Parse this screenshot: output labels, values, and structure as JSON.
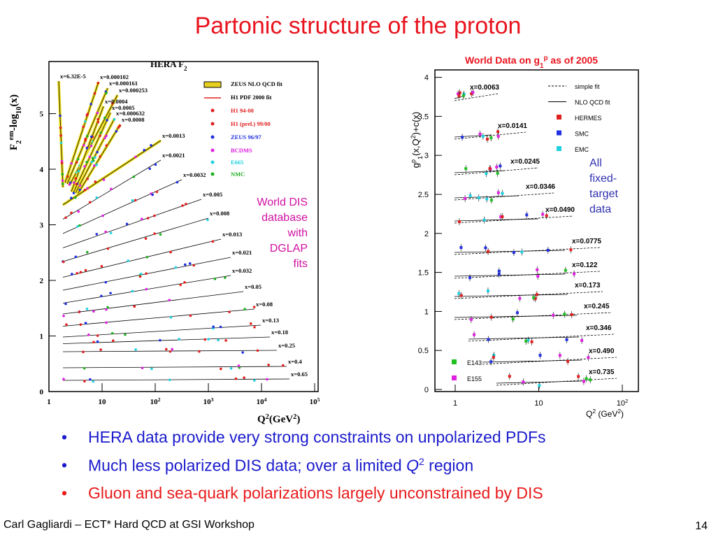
{
  "title": "Partonic structure of the proton",
  "left_plot": {
    "title": [
      {
        "text": "HERA F"
      },
      {
        "text": "2",
        "pos": "sub"
      }
    ],
    "y_label": [
      {
        "text": "F"
      },
      {
        "text": "2",
        "pos": "sub"
      },
      {
        "text": "em",
        "pos": "sup"
      },
      {
        "text": "-log"
      },
      {
        "text": "10",
        "pos": "sub"
      },
      {
        "text": "(x)"
      }
    ],
    "x_label": [
      {
        "text": "Q"
      },
      {
        "text": "2",
        "pos": "sup"
      },
      {
        "text": "(GeV"
      },
      {
        "text": "2",
        "pos": "sup"
      },
      {
        "text": ")"
      }
    ],
    "yticks": [
      "0",
      "1",
      "2",
      "3",
      "4",
      "5"
    ],
    "xticks": [
      [
        {
          "text": "1"
        }
      ],
      [
        {
          "text": "10"
        }
      ],
      [
        {
          "text": "10"
        },
        {
          "text": "2",
          "pos": "sup"
        }
      ],
      [
        {
          "text": "10"
        },
        {
          "text": "3",
          "pos": "sup"
        }
      ],
      [
        {
          "text": "10"
        },
        {
          "text": "4",
          "pos": "sup"
        }
      ],
      [
        {
          "text": "10"
        },
        {
          "text": "5",
          "pos": "sup"
        }
      ]
    ],
    "legend": [
      {
        "name": "ZEUS NLO QCD fit",
        "color": "#e8d020"
      },
      {
        "name": "H1 PDF 2000 fit",
        "color": "#e02020"
      },
      {
        "name": "H1 94-00",
        "color": "#e02020"
      },
      {
        "name": "H1 (prel.) 99/00",
        "color": "#e02020"
      },
      {
        "name": "ZEUS 96/97",
        "color": "#2030e0"
      },
      {
        "name": "BCDMS",
        "color": "#e020e0"
      },
      {
        "name": "E665",
        "color": "#20d0e0"
      },
      {
        "name": "NMC",
        "color": "#20b020"
      }
    ],
    "bins": [
      "x=6.32E-5",
      "x=0.000102",
      "x=0.000161",
      "x=0.000253",
      "x=0.0004",
      "x=0.0005",
      "x=0.000632",
      "x=0.0008",
      "x=0.0013",
      "x=0.0021",
      "x=0.0032",
      "x=0.005",
      "x=0.008",
      "x=0.013",
      "x=0.021",
      "x=0.032",
      "x=0.05",
      "x=0.08",
      "x=0.13",
      "x=0.18",
      "x=0.25",
      "x=0.4",
      "x=0.65"
    ],
    "annotation": [
      "World DIS",
      "database",
      "with",
      "DGLAP",
      "fits"
    ]
  },
  "right_plot": {
    "title": [
      {
        "text": "World Data on g"
      },
      {
        "text": "1",
        "pos": "sub"
      },
      {
        "text": "p",
        "pos": "sup"
      },
      {
        "text": " as of 2005"
      }
    ],
    "y_label": [
      {
        "text": "g"
      },
      {
        "text": "p",
        "pos": "sup"
      },
      {
        "text": "1",
        "pos": "sub"
      },
      {
        "text": "(x,Q"
      },
      {
        "text": "2",
        "pos": "sup"
      },
      {
        "text": ")+c(x)"
      }
    ],
    "x_label": [
      {
        "text": "Q"
      },
      {
        "text": "2",
        "pos": "sup"
      },
      {
        "text": " (GeV"
      },
      {
        "text": "2",
        "pos": "sup"
      },
      {
        "text": ")"
      }
    ],
    "yticks": [
      "0",
      "0.5",
      "1",
      "1.5",
      "2",
      "2.5",
      "3",
      "3.5",
      "4"
    ],
    "xticks": [
      [
        {
          "text": "1"
        }
      ],
      [
        {
          "text": "10"
        }
      ],
      [
        {
          "text": "10"
        },
        {
          "text": "2",
          "pos": "sup"
        }
      ]
    ],
    "legend": [
      {
        "name": "simple fit",
        "color": "#000000"
      },
      {
        "name": "NLO QCD fit",
        "color": "#000000"
      },
      {
        "name": "HERMES",
        "color": "#e02020"
      },
      {
        "name": "SMC",
        "color": "#2030e0"
      },
      {
        "name": "EMC",
        "color": "#20d0e0"
      },
      {
        "name": "E143",
        "color": "#20c020"
      },
      {
        "name": "E155",
        "color": "#e020e0"
      }
    ],
    "bins": [
      "x=0.0063",
      "x=0.0141",
      "x=0.0245",
      "x=0.0346",
      "x=0.0490",
      "x=0.0775",
      "x=0.122",
      "x=0.173",
      "x=0.245",
      "x=0.346",
      "x=0.490",
      "x=0.735"
    ],
    "annotation": [
      "All",
      "fixed-",
      "target",
      "data"
    ]
  },
  "bullets": [
    {
      "color": "#1a1acc",
      "segments": [
        {
          "text": "HERA data provide very strong constraints on unpolarized PDFs"
        }
      ]
    },
    {
      "color": "#1a1acc",
      "segments": [
        {
          "text": "Much less polarized DIS data; over a limited "
        },
        {
          "text": "Q",
          "pos": "it"
        },
        {
          "text": "2",
          "pos": "sup"
        },
        {
          "text": " region"
        }
      ]
    },
    {
      "color": "#e81a1a",
      "segments": [
        {
          "text": "Gluon and sea-quark polarizations largely unconstrained by DIS"
        }
      ]
    }
  ],
  "footer": "Carl Gagliardi – ECT* Hard QCD at GSI Workshop",
  "page_number": "14"
}
